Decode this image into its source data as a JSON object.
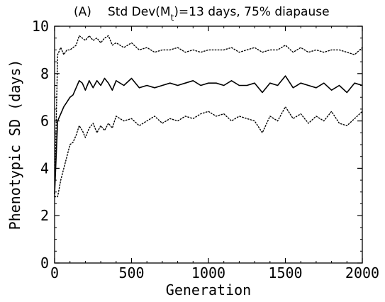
{
  "chart_data": {
    "type": "line",
    "panel_label": "(A)",
    "title": "Std Dev(M",
    "title_subscript": "t",
    "title_suffix": ")=13 days, 75% diapause",
    "xlabel": "Generation",
    "ylabel": "Phenotypic SD (days)",
    "xlim": [
      0,
      2000
    ],
    "ylim": [
      0,
      10
    ],
    "xticks": [
      0,
      500,
      1000,
      1500,
      2000
    ],
    "yticks": [
      0,
      2,
      4,
      6,
      8,
      10
    ],
    "grid": false,
    "legend": "none",
    "series": [
      {
        "style": "dotted",
        "x": [
          0,
          20,
          40,
          60,
          80,
          100,
          120,
          140,
          160,
          180,
          200,
          225,
          250,
          275,
          300,
          325,
          350,
          375,
          400,
          450,
          500,
          550,
          600,
          650,
          700,
          750,
          800,
          850,
          900,
          950,
          1000,
          1050,
          1100,
          1150,
          1200,
          1250,
          1300,
          1350,
          1400,
          1450,
          1500,
          1550,
          1600,
          1650,
          1700,
          1750,
          1800,
          1850,
          1900,
          1950,
          2000
        ],
        "values": [
          2.8,
          8.8,
          9.1,
          8.8,
          9.0,
          9.0,
          9.1,
          9.2,
          9.6,
          9.5,
          9.4,
          9.6,
          9.4,
          9.5,
          9.3,
          9.5,
          9.6,
          9.2,
          9.3,
          9.1,
          9.3,
          9.0,
          9.1,
          8.9,
          9.0,
          9.0,
          9.1,
          8.9,
          9.0,
          8.9,
          9.0,
          9.0,
          9.0,
          9.1,
          8.9,
          9.0,
          9.1,
          8.9,
          9.0,
          9.0,
          9.2,
          8.9,
          9.1,
          8.9,
          9.0,
          8.9,
          9.0,
          9.0,
          8.9,
          8.8,
          9.1
        ]
      },
      {
        "style": "solid",
        "x": [
          0,
          20,
          40,
          60,
          80,
          100,
          120,
          140,
          160,
          180,
          200,
          225,
          250,
          275,
          300,
          325,
          350,
          375,
          400,
          450,
          500,
          550,
          600,
          650,
          700,
          750,
          800,
          850,
          900,
          950,
          1000,
          1050,
          1100,
          1150,
          1200,
          1250,
          1300,
          1350,
          1400,
          1450,
          1500,
          1550,
          1600,
          1650,
          1700,
          1750,
          1800,
          1850,
          1900,
          1950,
          2000
        ],
        "values": [
          2.9,
          6.0,
          6.3,
          6.6,
          6.8,
          7.0,
          7.1,
          7.4,
          7.7,
          7.6,
          7.3,
          7.7,
          7.4,
          7.7,
          7.5,
          7.8,
          7.6,
          7.3,
          7.7,
          7.5,
          7.8,
          7.4,
          7.5,
          7.4,
          7.5,
          7.6,
          7.5,
          7.6,
          7.7,
          7.5,
          7.6,
          7.6,
          7.5,
          7.7,
          7.5,
          7.5,
          7.6,
          7.2,
          7.6,
          7.5,
          7.9,
          7.4,
          7.6,
          7.5,
          7.4,
          7.6,
          7.3,
          7.5,
          7.2,
          7.6,
          7.5
        ]
      },
      {
        "style": "dotted",
        "x": [
          0,
          20,
          40,
          60,
          80,
          100,
          120,
          140,
          160,
          180,
          200,
          225,
          250,
          275,
          300,
          325,
          350,
          375,
          400,
          450,
          500,
          550,
          600,
          650,
          700,
          750,
          800,
          850,
          900,
          950,
          1000,
          1050,
          1100,
          1150,
          1200,
          1250,
          1300,
          1350,
          1400,
          1450,
          1500,
          1550,
          1600,
          1650,
          1700,
          1750,
          1800,
          1850,
          1900,
          1950,
          2000
        ],
        "values": [
          2.8,
          2.8,
          3.5,
          4.0,
          4.5,
          5.0,
          5.1,
          5.4,
          5.8,
          5.6,
          5.3,
          5.7,
          5.9,
          5.5,
          5.8,
          5.6,
          5.9,
          5.7,
          6.2,
          6.0,
          6.1,
          5.8,
          6.0,
          6.2,
          5.9,
          6.1,
          6.0,
          6.2,
          6.1,
          6.3,
          6.4,
          6.2,
          6.3,
          6.0,
          6.2,
          6.1,
          6.0,
          5.5,
          6.2,
          6.0,
          6.6,
          6.1,
          6.3,
          5.9,
          6.2,
          6.0,
          6.4,
          5.9,
          5.8,
          6.1,
          6.4
        ]
      }
    ]
  }
}
